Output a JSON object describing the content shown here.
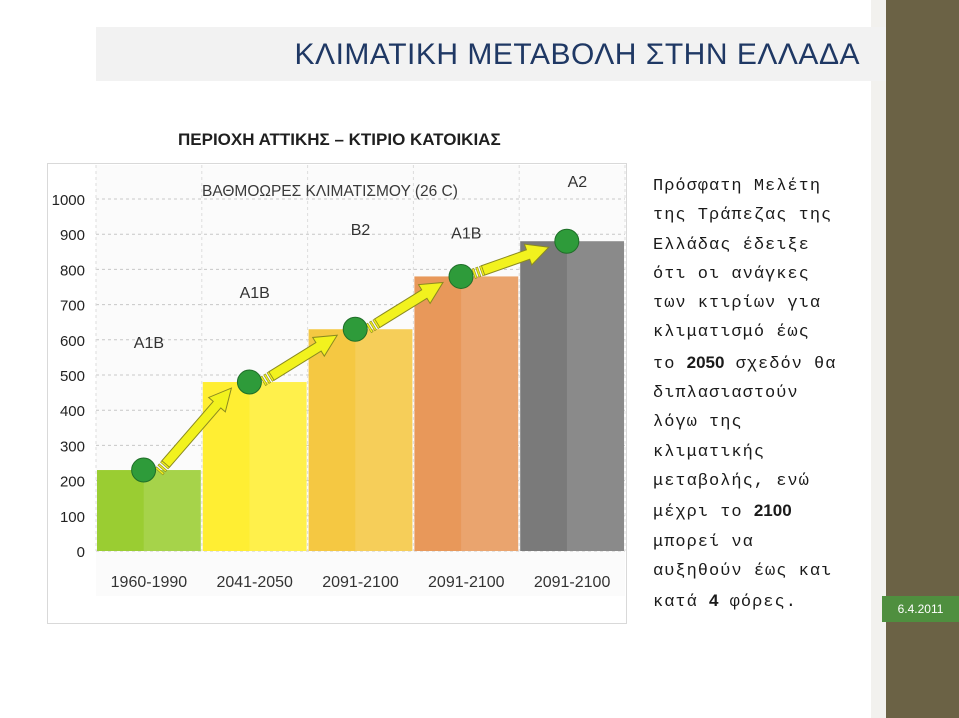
{
  "slide": {
    "title": "ΚΛΙΜΑΤΙΚΗ ΜΕΤΑΒΟΛΗ ΣΤΗΝ ΕΛΛΑΔΑ",
    "date": "6.4.2011",
    "side_text": [
      {
        "text": "Πρόσφατη Μελέτη"
      },
      {
        "text": "της Τράπεζας της"
      },
      {
        "text": "Ελλάδας έδειξε"
      },
      {
        "text": "ότι οι ανάγκες"
      },
      {
        "text": "των κτιρίων για"
      },
      {
        "text": "κλιματισμό έως"
      },
      {
        "text": "το ",
        "bold": "2050",
        "after": " σχεδόν θα"
      },
      {
        "text": "διπλασιαστούν"
      },
      {
        "text": "λόγω της"
      },
      {
        "text": "κλιματικής"
      },
      {
        "text": "μεταβολής, ενώ"
      },
      {
        "text": "μέχρι το ",
        "bold": "2100"
      },
      {
        "text": "μπορεί να"
      },
      {
        "text": "αυξηθούν έως και"
      },
      {
        "text": "κατά ",
        "bold": "4",
        "after": " φόρες."
      }
    ]
  },
  "chart_data": {
    "type": "bar",
    "title": "ΠΕΡΙΟΧΗ ΑΤΤΙΚΗΣ – ΚΤΙΡΙΟ ΚΑΤΟΙΚΙΑΣ",
    "subtitle": "ΒΑΘΜΟΩΡΕΣ ΚΛΙΜΑΤΙΣΜΟΥ (26 C)",
    "categories": [
      "1960-1990",
      "2041-2050",
      "2091-2100",
      "2091-2100",
      "2091-2100"
    ],
    "values": [
      230,
      480,
      630,
      780,
      880
    ],
    "scenarios": [
      "A1B",
      "A1B",
      "B2",
      "A1B",
      "A2"
    ],
    "bar_colors": [
      "#9acd32",
      "#ffee33",
      "#f5c842",
      "#e8985a",
      "#7a7a7a"
    ],
    "yticks": [
      0,
      100,
      200,
      300,
      400,
      500,
      600,
      700,
      800,
      900,
      1000
    ],
    "ylim": [
      0,
      1000
    ],
    "grid": true,
    "arrow_color": "#f2f21e",
    "marker_color": "#2e9b3a"
  }
}
